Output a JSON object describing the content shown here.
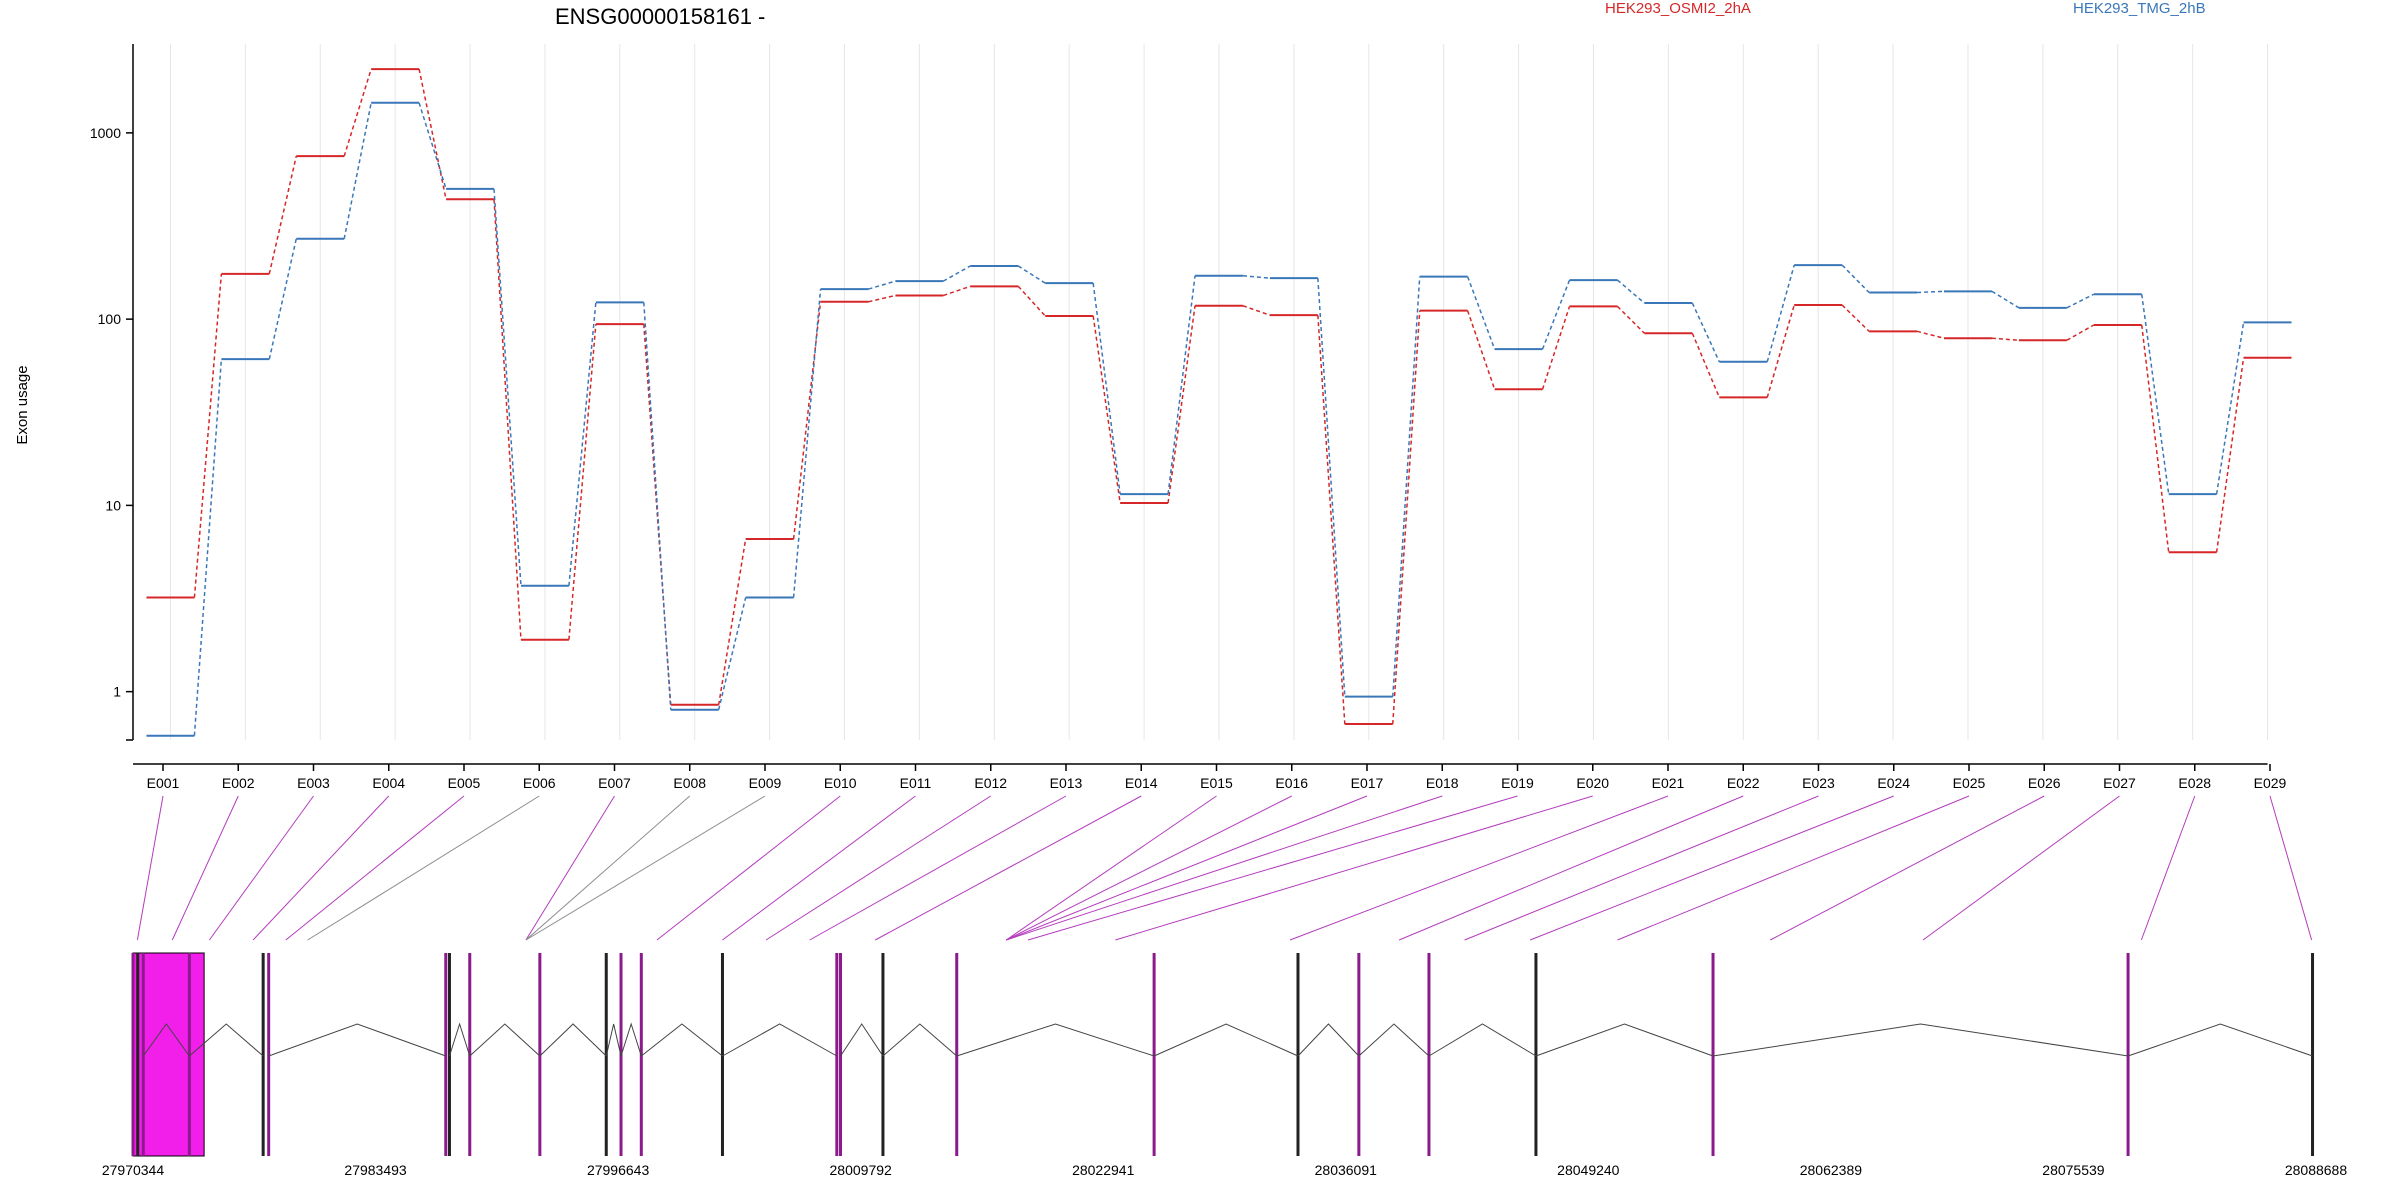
{
  "chart_data": {
    "type": "line",
    "title": "ENSG00000158161 -",
    "xlabel": "",
    "ylabel": "Exon usage",
    "y_scale": "log",
    "ylim": [
      0.55,
      3000
    ],
    "y_ticks": [
      1,
      10,
      100,
      1000
    ],
    "y_tick_labels": [
      "1",
      "10",
      "100",
      "1000"
    ],
    "grid": "vertical, per exon",
    "legend_placement": "top",
    "categories": [
      "E001",
      "E002",
      "E003",
      "E004",
      "E005",
      "E006",
      "E007",
      "E008",
      "E009",
      "E010",
      "E011",
      "E012",
      "E013",
      "E014",
      "E015",
      "E016",
      "E017",
      "E018",
      "E019",
      "E020",
      "E021",
      "E022",
      "E023",
      "E024",
      "E025",
      "E026",
      "E027",
      "E028",
      "E029"
    ],
    "series": [
      {
        "name": "HEK293_OSMI2_2hA",
        "color": "#d62728",
        "values": [
          3.2,
          175,
          750,
          2200,
          440,
          1.9,
          94,
          0.85,
          6.6,
          124,
          134,
          150,
          104,
          10.3,
          118,
          105,
          0.67,
          111,
          42,
          117,
          84,
          38,
          119,
          86,
          79,
          77,
          93,
          5.6,
          62
        ]
      },
      {
        "name": "HEK293_TMG_2hB",
        "color": "#3a77b8",
        "values": [
          0.58,
          61,
          270,
          1450,
          500,
          3.7,
          123,
          0.8,
          3.2,
          145,
          160,
          193,
          156,
          11.5,
          171,
          166,
          0.94,
          169,
          69,
          162,
          122,
          59,
          195,
          139,
          141,
          115,
          136,
          11.5,
          96
        ]
      }
    ],
    "genomic_axis": {
      "tick_labels": [
        "27970344",
        "27983493",
        "27996643",
        "28009792",
        "28022941",
        "28036091",
        "28049240",
        "28062389",
        "28075539",
        "28088688"
      ],
      "start": 27970344,
      "end": 28088688
    },
    "gene_model": {
      "exon_positions": [
        27970344,
        27970600,
        27970900,
        27973400,
        27977400,
        27977700,
        27987300,
        27987500,
        27988600,
        27992400,
        27996000,
        27996800,
        27997900,
        28002300,
        28008500,
        28008700,
        28011000,
        28015000,
        28025700,
        28033500,
        28036800,
        28040600,
        28046400,
        28056000,
        28078500,
        28088500
      ],
      "magenta_fill_range": [
        27970344,
        27974200
      ],
      "exon_to_bin_mapping": [
        0.2,
        1.8,
        3.5,
        5.5,
        7.0,
        8.0,
        18.0,
        18.0,
        18.0,
        24.0,
        27.0,
        29.0,
        31.0,
        34.0,
        40.0,
        40.0,
        40.0,
        40.0,
        41.0,
        45.0,
        53.0,
        58.0,
        61.0,
        64.0,
        68.0,
        75.0,
        82.0,
        92.0,
        99.8
      ]
    }
  }
}
